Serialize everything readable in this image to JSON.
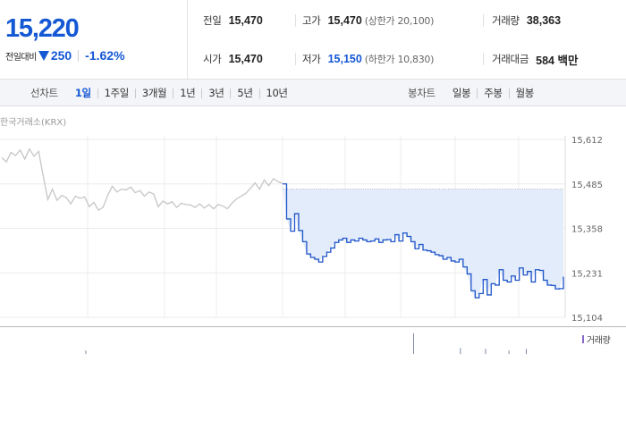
{
  "quote": {
    "price": "15,220",
    "change_label": "전일대비",
    "change_direction_icon": "triangle-down-icon",
    "change_value": "250",
    "change_rate": "-1.62%",
    "prev_close": {
      "label": "전일",
      "value": "15,470"
    },
    "high": {
      "label": "고가",
      "value": "15,470",
      "limit": "(상한가 20,100)"
    },
    "volume": {
      "label": "거래량",
      "value": "38,363"
    },
    "open": {
      "label": "시가",
      "value": "15,470"
    },
    "low": {
      "label": "저가",
      "value": "15,150",
      "limit": "(하한가 10,830)"
    },
    "trade_value": {
      "label": "거래대금",
      "value": "584 백만"
    }
  },
  "line_chart_tabs": {
    "title": "선차트",
    "items": [
      "1일",
      "1주일",
      "3개월",
      "1년",
      "3년",
      "5년",
      "10년"
    ],
    "selected": "1일"
  },
  "candle_chart_tabs": {
    "title": "봉차트",
    "items": [
      "일봉",
      "주봉",
      "월봉"
    ]
  },
  "colors": {
    "up": "#d60000",
    "down": "#1558d4",
    "line": "#1f55c9",
    "area": "#e3ecfa",
    "history": "#c6c6c6",
    "volume": "#8a68c8"
  },
  "chart_data": {
    "type": "line",
    "source": "한국거래소(KRX)",
    "y_ticks": [
      "15,612",
      "15,485",
      "15,358",
      "15,231",
      "15,104"
    ],
    "ylim": [
      15104,
      15612
    ],
    "prev_close_reference": 15470,
    "series": [
      {
        "values": [
          15560,
          15548,
          15575,
          15566,
          15582,
          15556,
          15585,
          15564,
          15578,
          15508,
          15440,
          15470,
          15438,
          15452,
          15446,
          15428,
          15450,
          15444,
          15448,
          15420,
          15432,
          15410,
          15418,
          15452,
          15478,
          15462,
          15470,
          15468,
          15476,
          15460,
          15466,
          15450,
          15462,
          15456,
          15420,
          15436,
          15428,
          15434,
          15418,
          15430,
          15426,
          15425,
          15418,
          15428,
          15416,
          15426,
          15414,
          15426,
          15422,
          15414,
          15430,
          15442,
          15450,
          15458,
          15472,
          15488,
          15470,
          15496,
          15480,
          15500,
          15492,
          15486
        ]
      },
      {
        "values": [
          15485,
          15385,
          15350,
          15400,
          15352,
          15320,
          15285,
          15275,
          15270,
          15262,
          15278,
          15290,
          15302,
          15318,
          15325,
          15330,
          15318,
          15325,
          15322,
          15330,
          15325,
          15320,
          15322,
          15328,
          15318,
          15325,
          15326,
          15320,
          15340,
          15322,
          15345,
          15335,
          15320,
          15300,
          15312,
          15296,
          15294,
          15290,
          15283,
          15280,
          15270,
          15275,
          15265,
          15262,
          15270,
          15248,
          15228,
          15180,
          15160,
          15172,
          15212,
          15168,
          15200,
          15196,
          15240,
          15210,
          15205,
          15222,
          15210,
          15245,
          15225,
          15235,
          15205,
          15240,
          15238,
          15210,
          15196,
          15195,
          15185,
          15186,
          15220
        ]
      }
    ],
    "grid": true
  },
  "volume_legend": "거래량"
}
